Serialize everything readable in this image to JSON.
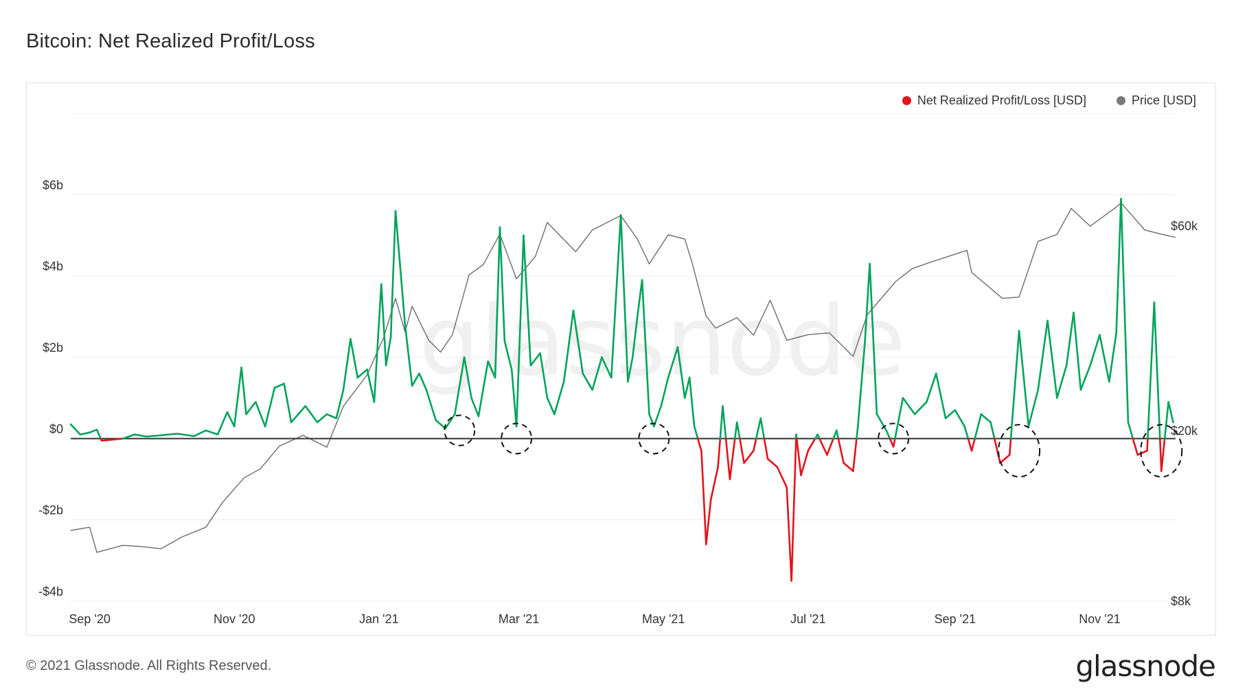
{
  "header": {
    "title": "Bitcoin: Net Realized Profit/Loss"
  },
  "legend": {
    "items": [
      {
        "label": "Net Realized Profit/Loss [USD]",
        "color": "#e3121b"
      },
      {
        "label": "Price [USD]",
        "color": "#7a7a7a"
      }
    ]
  },
  "footer": {
    "copyright": "© 2021 Glassnode. All Rights Reserved.",
    "brand": "glassnode",
    "watermark": "glassnode"
  },
  "colors": {
    "profit": "#00a35a",
    "loss": "#e3121b",
    "price": "#6b6b6b",
    "zero_line": "#333333",
    "grid": "#eeeeee"
  },
  "chart_data": {
    "type": "line",
    "title": "Bitcoin: Net Realized Profit/Loss",
    "x_range": [
      "2020-08-24",
      "2021-12-03"
    ],
    "x_ticks": [
      {
        "label": "Sep '20",
        "date": "2020-09-01"
      },
      {
        "label": "Nov '20",
        "date": "2020-11-01"
      },
      {
        "label": "Jan '21",
        "date": "2021-01-01"
      },
      {
        "label": "Mar '21",
        "date": "2021-03-01"
      },
      {
        "label": "May '21",
        "date": "2021-05-01"
      },
      {
        "label": "Jul '21",
        "date": "2021-07-01"
      },
      {
        "label": "Sep '21",
        "date": "2021-09-01"
      },
      {
        "label": "Nov '21",
        "date": "2021-11-01"
      }
    ],
    "y_left": {
      "label": "",
      "ylim": [
        -4,
        8
      ],
      "unit": "billion USD",
      "ticks": [
        {
          "label": "$6b",
          "value": 6
        },
        {
          "label": "$4b",
          "value": 4
        },
        {
          "label": "$2b",
          "value": 2
        },
        {
          "label": "$0",
          "value": 0
        },
        {
          "label": "-$2b",
          "value": -2
        },
        {
          "label": "-$4b",
          "value": -4
        }
      ]
    },
    "y_right": {
      "label": "",
      "scale": "log",
      "ylim": [
        8000,
        110000
      ],
      "ticks": [
        {
          "label": "$60k",
          "value": 60000
        },
        {
          "label": "$20k",
          "value": 20000
        },
        {
          "label": "$8k",
          "value": 8000
        }
      ]
    },
    "grid": true,
    "legend_position": "top-right",
    "series": [
      {
        "name": "Net Realized Profit/Loss [USD]",
        "unit": "billion USD",
        "axis": "left",
        "points": [
          [
            "2020-08-24",
            0.35
          ],
          [
            "2020-08-28",
            0.1
          ],
          [
            "2020-09-01",
            0.15
          ],
          [
            "2020-09-04",
            0.22
          ],
          [
            "2020-09-06",
            -0.05
          ],
          [
            "2020-09-10",
            -0.03
          ],
          [
            "2020-09-15",
            0.0
          ],
          [
            "2020-09-20",
            0.1
          ],
          [
            "2020-09-25",
            0.05
          ],
          [
            "2020-10-01",
            0.08
          ],
          [
            "2020-10-08",
            0.12
          ],
          [
            "2020-10-15",
            0.06
          ],
          [
            "2020-10-20",
            0.2
          ],
          [
            "2020-10-25",
            0.1
          ],
          [
            "2020-10-29",
            0.65
          ],
          [
            "2020-11-01",
            0.3
          ],
          [
            "2020-11-04",
            1.75
          ],
          [
            "2020-11-06",
            0.6
          ],
          [
            "2020-11-10",
            0.9
          ],
          [
            "2020-11-14",
            0.3
          ],
          [
            "2020-11-18",
            1.25
          ],
          [
            "2020-11-22",
            1.35
          ],
          [
            "2020-11-25",
            0.4
          ],
          [
            "2020-11-28",
            0.6
          ],
          [
            "2020-12-01",
            0.8
          ],
          [
            "2020-12-06",
            0.4
          ],
          [
            "2020-12-10",
            0.6
          ],
          [
            "2020-12-14",
            0.5
          ],
          [
            "2020-12-17",
            1.2
          ],
          [
            "2020-12-20",
            2.45
          ],
          [
            "2020-12-23",
            1.5
          ],
          [
            "2020-12-27",
            1.7
          ],
          [
            "2020-12-30",
            0.9
          ],
          [
            "2021-01-02",
            3.8
          ],
          [
            "2021-01-04",
            1.8
          ],
          [
            "2021-01-06",
            2.5
          ],
          [
            "2021-01-08",
            5.6
          ],
          [
            "2021-01-10",
            4.2
          ],
          [
            "2021-01-12",
            2.8
          ],
          [
            "2021-01-15",
            1.3
          ],
          [
            "2021-01-18",
            1.6
          ],
          [
            "2021-01-21",
            1.2
          ],
          [
            "2021-01-25",
            0.45
          ],
          [
            "2021-01-29",
            0.25
          ],
          [
            "2021-02-02",
            0.6
          ],
          [
            "2021-02-06",
            2.0
          ],
          [
            "2021-02-09",
            1.0
          ],
          [
            "2021-02-12",
            0.55
          ],
          [
            "2021-02-16",
            1.9
          ],
          [
            "2021-02-19",
            1.5
          ],
          [
            "2021-02-21",
            5.2
          ],
          [
            "2021-02-23",
            2.4
          ],
          [
            "2021-02-26",
            1.7
          ],
          [
            "2021-02-28",
            0.3
          ],
          [
            "2021-03-03",
            5.0
          ],
          [
            "2021-03-06",
            1.8
          ],
          [
            "2021-03-10",
            2.1
          ],
          [
            "2021-03-13",
            1.0
          ],
          [
            "2021-03-16",
            0.6
          ],
          [
            "2021-03-20",
            1.4
          ],
          [
            "2021-03-24",
            3.15
          ],
          [
            "2021-03-28",
            1.6
          ],
          [
            "2021-04-01",
            1.2
          ],
          [
            "2021-04-05",
            2.0
          ],
          [
            "2021-04-09",
            1.5
          ],
          [
            "2021-04-13",
            5.5
          ],
          [
            "2021-04-16",
            1.4
          ],
          [
            "2021-04-18",
            2.0
          ],
          [
            "2021-04-20",
            3.0
          ],
          [
            "2021-04-22",
            3.9
          ],
          [
            "2021-04-25",
            0.6
          ],
          [
            "2021-04-27",
            0.3
          ],
          [
            "2021-04-30",
            0.8
          ],
          [
            "2021-05-03",
            1.5
          ],
          [
            "2021-05-07",
            2.25
          ],
          [
            "2021-05-10",
            1.0
          ],
          [
            "2021-05-12",
            1.5
          ],
          [
            "2021-05-14",
            0.3
          ],
          [
            "2021-05-17",
            -0.3
          ],
          [
            "2021-05-19",
            -2.6
          ],
          [
            "2021-05-21",
            -1.5
          ],
          [
            "2021-05-24",
            -0.7
          ],
          [
            "2021-05-26",
            0.8
          ],
          [
            "2021-05-29",
            -1.0
          ],
          [
            "2021-06-01",
            0.4
          ],
          [
            "2021-06-04",
            -0.6
          ],
          [
            "2021-06-08",
            -0.3
          ],
          [
            "2021-06-11",
            0.5
          ],
          [
            "2021-06-14",
            -0.5
          ],
          [
            "2021-06-18",
            -0.7
          ],
          [
            "2021-06-22",
            -1.2
          ],
          [
            "2021-06-24",
            -3.5
          ],
          [
            "2021-06-26",
            0.1
          ],
          [
            "2021-06-28",
            -0.9
          ],
          [
            "2021-07-01",
            -0.3
          ],
          [
            "2021-07-05",
            0.1
          ],
          [
            "2021-07-09",
            -0.4
          ],
          [
            "2021-07-13",
            0.2
          ],
          [
            "2021-07-16",
            -0.6
          ],
          [
            "2021-07-20",
            -0.8
          ],
          [
            "2021-07-22",
            0.3
          ],
          [
            "2021-07-25",
            2.4
          ],
          [
            "2021-07-27",
            4.3
          ],
          [
            "2021-07-30",
            0.6
          ],
          [
            "2021-08-03",
            0.2
          ],
          [
            "2021-08-06",
            -0.2
          ],
          [
            "2021-08-10",
            1.0
          ],
          [
            "2021-08-15",
            0.6
          ],
          [
            "2021-08-20",
            0.9
          ],
          [
            "2021-08-24",
            1.6
          ],
          [
            "2021-08-28",
            0.5
          ],
          [
            "2021-09-01",
            0.7
          ],
          [
            "2021-09-05",
            0.3
          ],
          [
            "2021-09-08",
            -0.3
          ],
          [
            "2021-09-12",
            0.6
          ],
          [
            "2021-09-16",
            0.4
          ],
          [
            "2021-09-20",
            -0.6
          ],
          [
            "2021-09-24",
            -0.4
          ],
          [
            "2021-09-28",
            2.65
          ],
          [
            "2021-10-02",
            0.3
          ],
          [
            "2021-10-06",
            1.2
          ],
          [
            "2021-10-10",
            2.9
          ],
          [
            "2021-10-14",
            1.0
          ],
          [
            "2021-10-18",
            1.8
          ],
          [
            "2021-10-21",
            3.1
          ],
          [
            "2021-10-24",
            1.2
          ],
          [
            "2021-10-28",
            1.8
          ],
          [
            "2021-11-01",
            2.55
          ],
          [
            "2021-11-05",
            1.4
          ],
          [
            "2021-11-08",
            2.6
          ],
          [
            "2021-11-10",
            5.9
          ],
          [
            "2021-11-13",
            0.4
          ],
          [
            "2021-11-17",
            -0.4
          ],
          [
            "2021-11-21",
            -0.3
          ],
          [
            "2021-11-24",
            3.35
          ],
          [
            "2021-11-27",
            -0.8
          ],
          [
            "2021-11-30",
            0.9
          ],
          [
            "2021-12-02",
            0.4
          ]
        ]
      },
      {
        "name": "Price [USD]",
        "unit": "USD",
        "axis": "right",
        "points": [
          [
            "2020-08-24",
            11700
          ],
          [
            "2020-09-01",
            11900
          ],
          [
            "2020-09-04",
            10400
          ],
          [
            "2020-09-15",
            10800
          ],
          [
            "2020-09-25",
            10700
          ],
          [
            "2020-10-01",
            10600
          ],
          [
            "2020-10-10",
            11300
          ],
          [
            "2020-10-20",
            11900
          ],
          [
            "2020-10-27",
            13600
          ],
          [
            "2020-11-05",
            15500
          ],
          [
            "2020-11-12",
            16300
          ],
          [
            "2020-11-20",
            18400
          ],
          [
            "2020-11-30",
            19500
          ],
          [
            "2020-12-10",
            18300
          ],
          [
            "2020-12-17",
            22800
          ],
          [
            "2020-12-27",
            27000
          ],
          [
            "2021-01-03",
            33000
          ],
          [
            "2021-01-08",
            40700
          ],
          [
            "2021-01-12",
            34000
          ],
          [
            "2021-01-15",
            39000
          ],
          [
            "2021-01-22",
            32500
          ],
          [
            "2021-01-27",
            30500
          ],
          [
            "2021-02-01",
            33500
          ],
          [
            "2021-02-08",
            46200
          ],
          [
            "2021-02-14",
            48800
          ],
          [
            "2021-02-21",
            57500
          ],
          [
            "2021-02-28",
            45200
          ],
          [
            "2021-03-08",
            51000
          ],
          [
            "2021-03-13",
            61200
          ],
          [
            "2021-03-25",
            52300
          ],
          [
            "2021-04-01",
            58800
          ],
          [
            "2021-04-13",
            63500
          ],
          [
            "2021-04-20",
            56000
          ],
          [
            "2021-04-25",
            49000
          ],
          [
            "2021-05-03",
            57300
          ],
          [
            "2021-05-10",
            56000
          ],
          [
            "2021-05-13",
            49500
          ],
          [
            "2021-05-19",
            37000
          ],
          [
            "2021-05-23",
            34700
          ],
          [
            "2021-06-01",
            36700
          ],
          [
            "2021-06-08",
            33400
          ],
          [
            "2021-06-15",
            40300
          ],
          [
            "2021-06-22",
            32500
          ],
          [
            "2021-07-01",
            33500
          ],
          [
            "2021-07-10",
            33800
          ],
          [
            "2021-07-20",
            29800
          ],
          [
            "2021-07-26",
            37300
          ],
          [
            "2021-08-07",
            44600
          ],
          [
            "2021-08-14",
            47800
          ],
          [
            "2021-08-21",
            49300
          ],
          [
            "2021-09-06",
            52700
          ],
          [
            "2021-09-08",
            46800
          ],
          [
            "2021-09-21",
            40700
          ],
          [
            "2021-09-28",
            41000
          ],
          [
            "2021-10-06",
            55300
          ],
          [
            "2021-10-14",
            57400
          ],
          [
            "2021-10-20",
            66000
          ],
          [
            "2021-10-28",
            60000
          ],
          [
            "2021-11-08",
            66500
          ],
          [
            "2021-11-10",
            68000
          ],
          [
            "2021-11-20",
            58800
          ],
          [
            "2021-11-28",
            57300
          ],
          [
            "2021-12-03",
            56500
          ]
        ]
      }
    ],
    "annotations": [
      {
        "shape": "dashed-circle",
        "date": "2021-02-04",
        "value": 0.2
      },
      {
        "shape": "dashed-circle",
        "date": "2021-02-28",
        "value": 0
      },
      {
        "shape": "dashed-circle",
        "date": "2021-04-27",
        "value": 0
      },
      {
        "shape": "dashed-circle",
        "date": "2021-08-06",
        "value": 0
      },
      {
        "shape": "dashed-circle",
        "date": "2021-09-28",
        "value": -0.3
      },
      {
        "shape": "dashed-circle",
        "date": "2021-11-27",
        "value": -0.3
      }
    ]
  }
}
